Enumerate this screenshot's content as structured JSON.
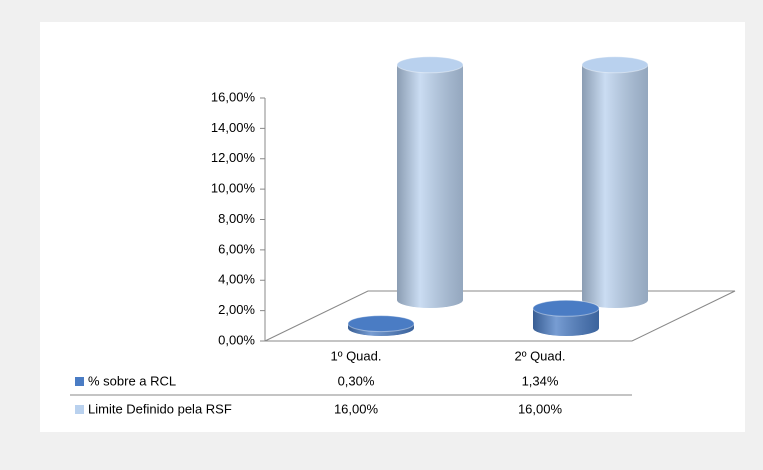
{
  "chart_data": {
    "type": "bar3d",
    "categories": [
      "1º Quad.",
      "2º Quad."
    ],
    "series": [
      {
        "name": "% sobre a RCL",
        "color": "#4a7cc4",
        "values": [
          0.3,
          1.34
        ],
        "value_labels": [
          "0,30%",
          "1,34%"
        ]
      },
      {
        "name": "Limite Definido pela RSF",
        "color": "#b9d1ee",
        "values": [
          16,
          16
        ],
        "value_labels": [
          "16,00%",
          "16,00%"
        ]
      }
    ],
    "ylim": [
      0,
      16
    ],
    "yticks": [
      {
        "value": 0,
        "label": "0,00%"
      },
      {
        "value": 2,
        "label": "2,00%"
      },
      {
        "value": 4,
        "label": "4,00%"
      },
      {
        "value": 6,
        "label": "6,00%"
      },
      {
        "value": 8,
        "label": "8,00%"
      },
      {
        "value": 10,
        "label": "10,00%"
      },
      {
        "value": 12,
        "label": "12,00%"
      },
      {
        "value": 14,
        "label": "14,00%"
      },
      {
        "value": 16,
        "label": "16,00%"
      }
    ]
  }
}
